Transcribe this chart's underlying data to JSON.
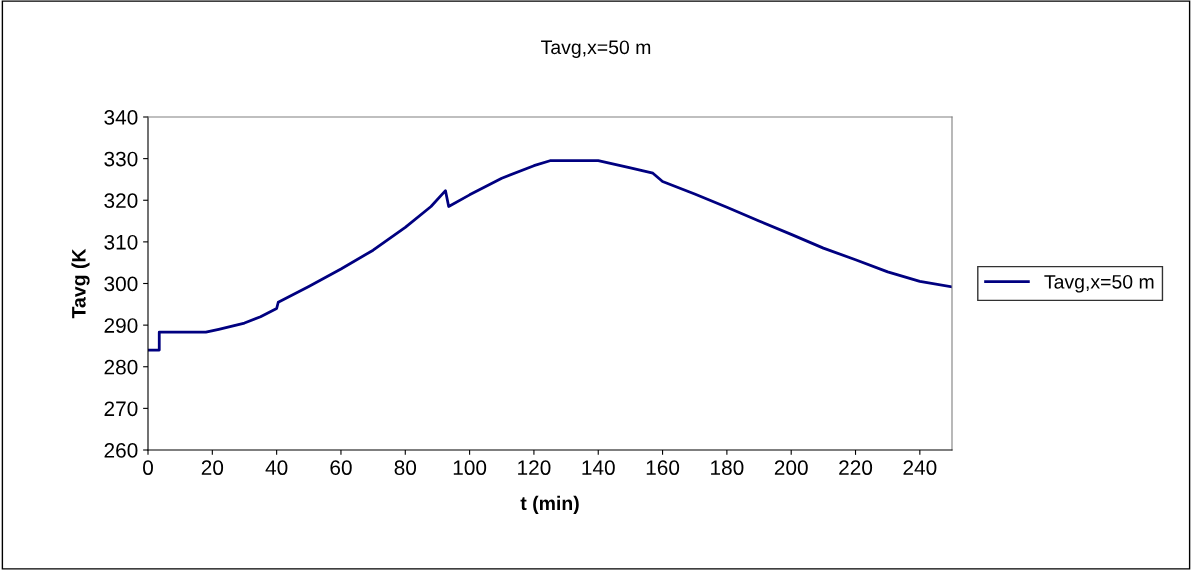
{
  "chart_data": {
    "type": "line",
    "title": "Tavg,x=50 m",
    "xlabel": "t (min)",
    "ylabel": "Tavg (K",
    "x": [
      0,
      3.5,
      3.5,
      18,
      22,
      30,
      35,
      40,
      40.5,
      50,
      60,
      70,
      80,
      88,
      92.5,
      93.5,
      100,
      110,
      120,
      125,
      140,
      150,
      157,
      160,
      170,
      180,
      190,
      200,
      210,
      220,
      230,
      240,
      250
    ],
    "series": [
      {
        "name": "Tavg,x=50 m",
        "color": "#000080",
        "values": [
          284,
          284,
          288.3,
          288.3,
          289,
          290.5,
          292,
          294,
          295.5,
          299.3,
          303.5,
          308,
          313.5,
          318.5,
          322.3,
          318.5,
          321.3,
          325.3,
          328.3,
          329.5,
          329.5,
          327.8,
          326.5,
          324.5,
          321.5,
          318.3,
          315,
          311.8,
          308.5,
          305.7,
          302.8,
          300.5,
          299.2
        ]
      }
    ],
    "xlim": [
      0,
      250
    ],
    "xticks": [
      0,
      20,
      40,
      60,
      80,
      100,
      120,
      140,
      160,
      180,
      200,
      220,
      240
    ],
    "ylim": [
      260,
      340
    ],
    "yticks": [
      260,
      270,
      280,
      290,
      300,
      310,
      320,
      330,
      340
    ],
    "grid": false,
    "legend": "right",
    "marker": "none",
    "line_style": "solid"
  }
}
